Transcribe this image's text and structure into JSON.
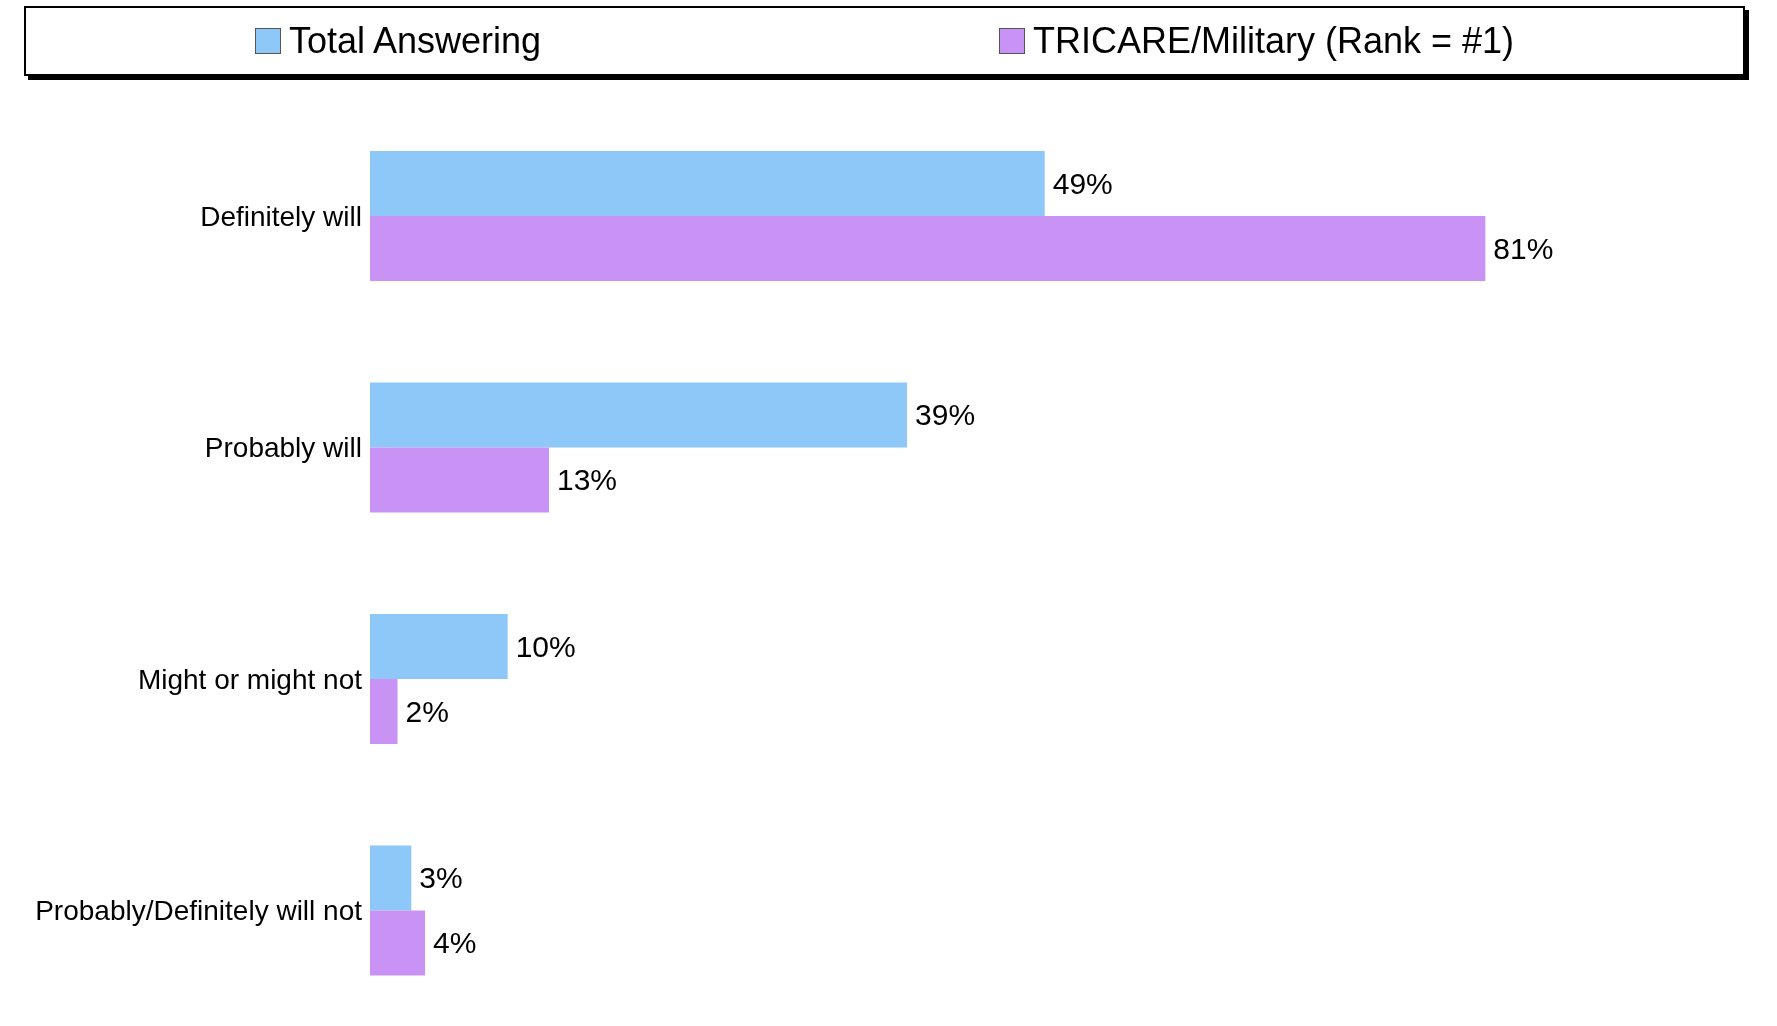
{
  "chart_data": {
    "type": "bar",
    "orientation": "horizontal",
    "categories": [
      "Definitely will",
      "Probably will",
      "Might or might not",
      "Probably/Definitely will not"
    ],
    "series": [
      {
        "name": "Total Answering",
        "color": "#8ec8f8",
        "values": [
          49,
          39,
          10,
          3
        ],
        "value_labels": [
          "49%",
          "39%",
          "10%",
          "3%"
        ]
      },
      {
        "name": "TRICARE/Military (Rank = #1)",
        "color": "#c993f5",
        "values": [
          81,
          13,
          2,
          4
        ],
        "value_labels": [
          "81%",
          "13%",
          "2%",
          "4%"
        ]
      }
    ],
    "legend": "top",
    "grid": false
  }
}
